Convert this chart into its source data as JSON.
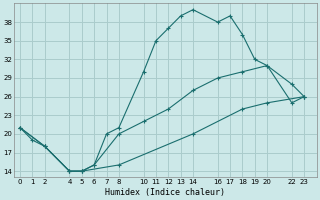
{
  "xlabel": "Humidex (Indice chaleur)",
  "background_color": "#cce8e8",
  "grid_color": "#aacccc",
  "line_color": "#1a6e6e",
  "xlim": [
    -0.5,
    24
  ],
  "ylim": [
    13,
    41
  ],
  "xticks": [
    0,
    1,
    2,
    4,
    5,
    6,
    7,
    8,
    10,
    11,
    12,
    13,
    14,
    16,
    17,
    18,
    19,
    20,
    22,
    23
  ],
  "yticks": [
    14,
    17,
    20,
    23,
    26,
    29,
    32,
    35,
    38
  ],
  "line1_x": [
    0,
    1,
    2,
    4,
    5,
    6,
    7,
    8,
    10,
    11,
    12,
    13,
    14,
    16,
    17,
    18,
    19,
    20,
    22,
    23
  ],
  "line1_y": [
    21,
    19,
    18,
    14,
    14,
    15,
    20,
    21,
    30,
    35,
    37,
    39,
    40,
    38,
    39,
    36,
    32,
    31,
    28,
    26
  ],
  "line2_x": [
    0,
    2,
    4,
    5,
    6,
    8,
    10,
    12,
    14,
    16,
    18,
    20,
    22,
    23
  ],
  "line2_y": [
    21,
    18,
    14,
    14,
    15,
    20,
    22,
    24,
    27,
    29,
    30,
    31,
    25,
    26
  ],
  "line3_x": [
    0,
    2,
    4,
    5,
    8,
    14,
    18,
    20,
    23
  ],
  "line3_y": [
    21,
    18,
    14,
    14,
    15,
    20,
    24,
    25,
    26
  ]
}
